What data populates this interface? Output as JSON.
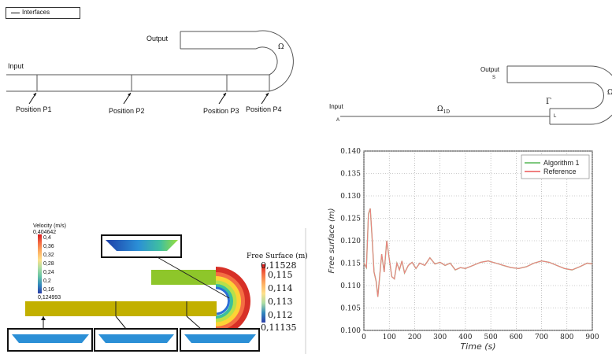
{
  "top_left": {
    "legend": "Interfaces",
    "input_label": "Input",
    "output_label": "Output",
    "omega_label": "Ω",
    "positions": [
      "Position P1",
      "Position P2",
      "Position P3",
      "Position P4"
    ]
  },
  "top_right": {
    "output_label": "Output",
    "s_label": "S",
    "input_label": "Input",
    "a_label": "A",
    "omega1d_label": "Ω",
    "omega1d_sub": "1D",
    "gamma_label": "Γ",
    "l_label": "L",
    "omega_label": "Ω"
  },
  "bottom_left": {
    "velocity_title": "Velocity (m/s)",
    "velocity_ticks": [
      "0,404642",
      "0,4",
      "0,36",
      "0,32",
      "0,28",
      "0,24",
      "0,2",
      "0,16",
      "0,124993"
    ],
    "free_surface_title": "Free Surface (m)",
    "free_surface_ticks": [
      "0,11528",
      "0,115",
      "0,114",
      "0,113",
      "0,112",
      "0,11135"
    ]
  },
  "chart_data": {
    "type": "line",
    "xlabel": "Time (s)",
    "ylabel": "Free surface (m)",
    "xlim": [
      0,
      900
    ],
    "ylim": [
      0.1,
      0.14
    ],
    "xticks": [
      0,
      100,
      200,
      300,
      400,
      500,
      600,
      700,
      800,
      900
    ],
    "yticks": [
      "0.100",
      "0.105",
      "0.110",
      "0.115",
      "0.120",
      "0.125",
      "0.130",
      "0.135",
      "0.140"
    ],
    "grid": true,
    "legend_position": "top-right",
    "series": [
      {
        "name": "Algorithm 1",
        "color": "#7fc97f",
        "x": [
          0,
          10,
          18,
          25,
          32,
          40,
          48,
          55,
          62,
          70,
          80,
          90,
          100,
          110,
          120,
          130,
          140,
          150,
          160,
          175,
          190,
          205,
          220,
          240,
          260,
          280,
          300,
          320,
          340,
          360,
          380,
          400,
          430,
          460,
          490,
          520,
          550,
          580,
          610,
          640,
          670,
          700,
          730,
          760,
          790,
          820,
          850,
          880,
          900
        ],
        "y": [
          0.115,
          0.114,
          0.126,
          0.1272,
          0.121,
          0.113,
          0.111,
          0.1075,
          0.112,
          0.117,
          0.113,
          0.12,
          0.116,
          0.112,
          0.1115,
          0.115,
          0.1135,
          0.1155,
          0.1128,
          0.1145,
          0.1152,
          0.1138,
          0.115,
          0.1145,
          0.1162,
          0.1148,
          0.1152,
          0.1145,
          0.115,
          0.1135,
          0.114,
          0.1138,
          0.1145,
          0.1152,
          0.1155,
          0.115,
          0.1145,
          0.114,
          0.1138,
          0.1142,
          0.115,
          0.1155,
          0.1152,
          0.1145,
          0.1138,
          0.1135,
          0.1142,
          0.115,
          0.1148
        ]
      },
      {
        "name": "Reference",
        "color": "#f08080",
        "x": [
          0,
          10,
          18,
          25,
          32,
          40,
          48,
          55,
          62,
          70,
          80,
          90,
          100,
          110,
          120,
          130,
          140,
          150,
          160,
          175,
          190,
          205,
          220,
          240,
          260,
          280,
          300,
          320,
          340,
          360,
          380,
          400,
          430,
          460,
          490,
          520,
          550,
          580,
          610,
          640,
          670,
          700,
          730,
          760,
          790,
          820,
          850,
          880,
          900
        ],
        "y": [
          0.115,
          0.114,
          0.126,
          0.1272,
          0.121,
          0.113,
          0.111,
          0.1075,
          0.112,
          0.117,
          0.113,
          0.12,
          0.116,
          0.112,
          0.1115,
          0.115,
          0.1135,
          0.1155,
          0.1128,
          0.1145,
          0.1152,
          0.1138,
          0.115,
          0.1145,
          0.1162,
          0.1148,
          0.1152,
          0.1145,
          0.115,
          0.1135,
          0.114,
          0.1138,
          0.1145,
          0.1152,
          0.1155,
          0.115,
          0.1145,
          0.114,
          0.1138,
          0.1142,
          0.115,
          0.1155,
          0.1152,
          0.1145,
          0.1138,
          0.1135,
          0.1142,
          0.115,
          0.1148
        ]
      }
    ]
  }
}
